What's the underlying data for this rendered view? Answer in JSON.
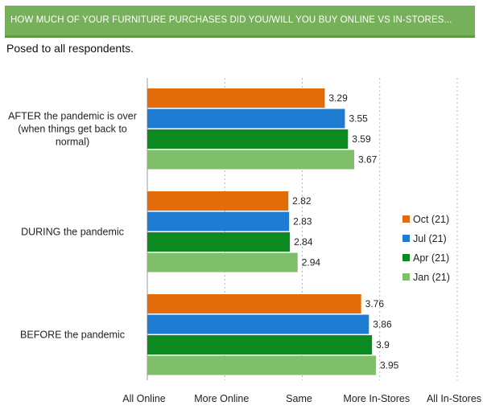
{
  "header": {
    "title": "HOW MUCH OF YOUR FURNITURE PURCHASES DID YOU/WILL YOU BUY ONLINE VS IN-STORES...",
    "subtitle": "Posed to all respondents."
  },
  "colors": {
    "title_bar": "#77b05a",
    "Oct (21)": "#e36c0a",
    "Jul (21)": "#1e7cd3",
    "Apr (21)": "#0b8a21",
    "Jan (21)": "#7fbf6a"
  },
  "chart_data": {
    "type": "bar",
    "orientation": "horizontal",
    "categories": [
      [
        "AFTER the pandemic is over",
        "(when things get back to",
        "normal)"
      ],
      [
        "DURING the pandemic"
      ],
      [
        "BEFORE the pandemic"
      ]
    ],
    "series": [
      {
        "name": "Oct (21)",
        "values": [
          3.29,
          2.82,
          3.76
        ]
      },
      {
        "name": "Jul (21)",
        "values": [
          3.55,
          2.83,
          3.86
        ]
      },
      {
        "name": "Apr (21)",
        "values": [
          3.59,
          2.84,
          3.9
        ]
      },
      {
        "name": "Jan (21)",
        "values": [
          3.67,
          2.94,
          3.95
        ]
      }
    ],
    "x_ticks": [
      1,
      2,
      3,
      4,
      5
    ],
    "x_tick_labels": [
      "All Online",
      "More Online",
      "Same",
      "More In-Stores",
      "All In-Stores"
    ],
    "xlim": [
      1,
      5
    ],
    "grid": true,
    "legend_position": "right"
  }
}
